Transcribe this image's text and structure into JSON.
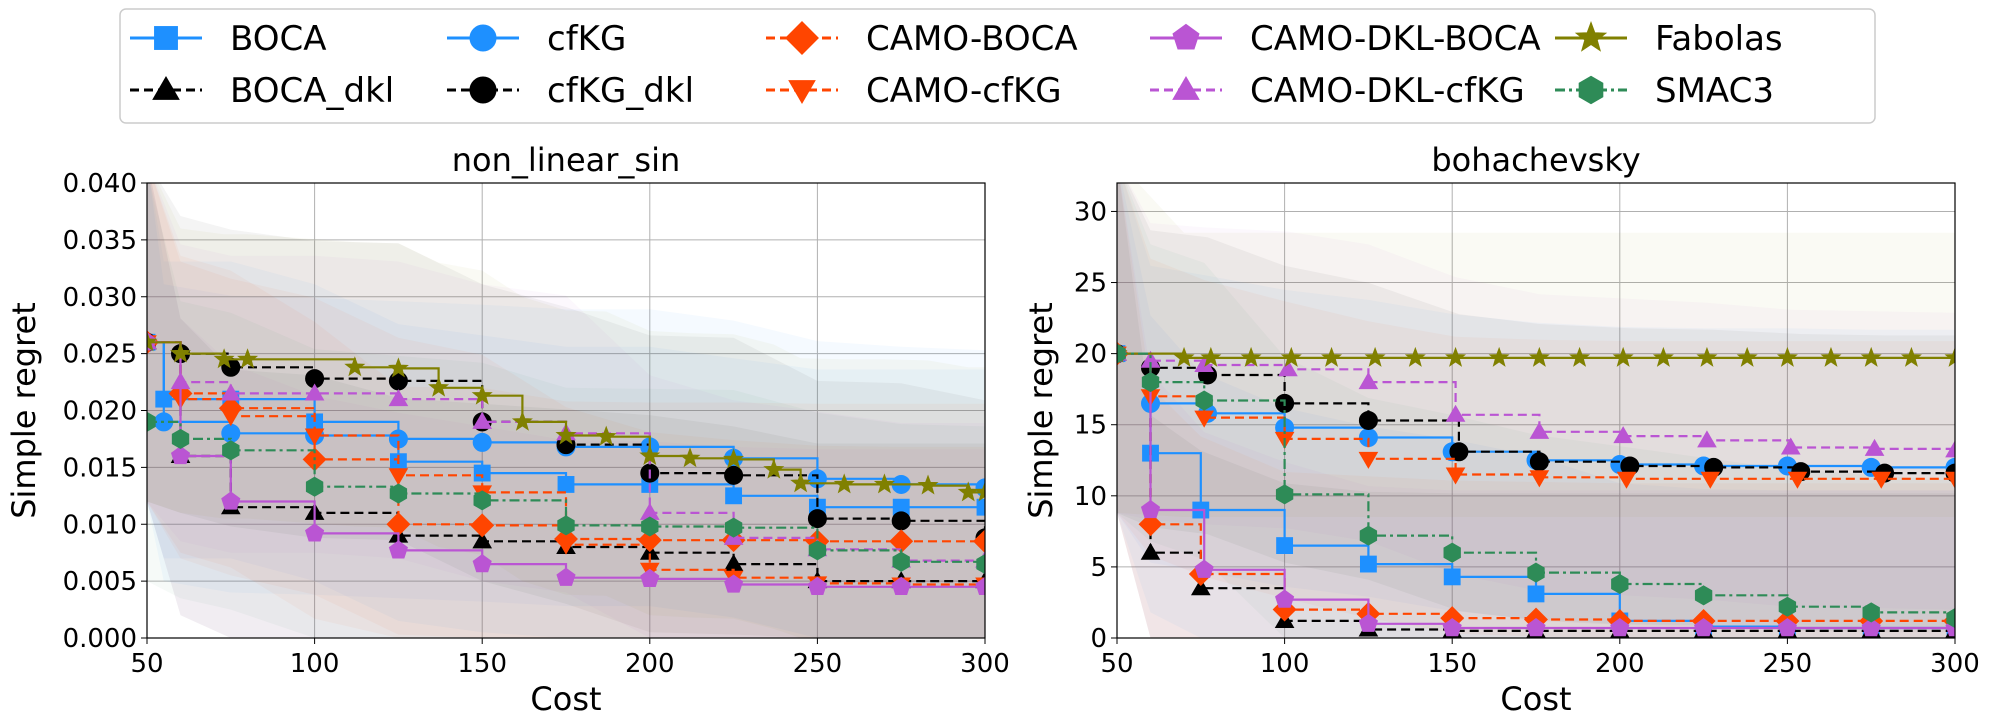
{
  "legend": {
    "entries": [
      {
        "name": "BOCA",
        "color": "#1e90ff",
        "marker": "square",
        "dash": "solid"
      },
      {
        "name": "BOCA_dkl",
        "color": "#000000",
        "marker": "triangle-up",
        "dash": "dashed"
      },
      {
        "name": "cfKG",
        "color": "#1e90ff",
        "marker": "circle",
        "dash": "solid"
      },
      {
        "name": "cfKG_dkl",
        "color": "#000000",
        "marker": "circle",
        "dash": "dashed"
      },
      {
        "name": "CAMO-BOCA",
        "color": "#ff4500",
        "marker": "diamond",
        "dash": "dashed"
      },
      {
        "name": "CAMO-cfKG",
        "color": "#ff4500",
        "marker": "triangle-down",
        "dash": "dashed"
      },
      {
        "name": "CAMO-DKL-BOCA",
        "color": "#ba55d3",
        "marker": "pentagon",
        "dash": "solid"
      },
      {
        "name": "CAMO-DKL-cfKG",
        "color": "#ba55d3",
        "marker": "triangle-up",
        "dash": "dashed"
      },
      {
        "name": "Fabolas",
        "color": "#808000",
        "marker": "star",
        "dash": "solid"
      },
      {
        "name": "SMAC3",
        "color": "#2e8b57",
        "marker": "hexagon",
        "dash": "dashdot"
      }
    ]
  },
  "chart_data": [
    {
      "type": "line",
      "title": "non_linear_sin",
      "xlabel": "Cost",
      "ylabel": "Simple regret",
      "xlim": [
        50,
        300
      ],
      "ylim": [
        0,
        0.04
      ],
      "xticks": [
        50,
        100,
        150,
        200,
        250,
        300
      ],
      "xtick_labels": [
        "50",
        "100",
        "150",
        "200",
        "250",
        "300"
      ],
      "yticks": [
        0,
        0.005,
        0.01,
        0.015,
        0.02,
        0.025,
        0.03,
        0.035,
        0.04
      ],
      "ytick_labels": [
        "0.000",
        "0.005",
        "0.010",
        "0.015",
        "0.020",
        "0.025",
        "0.030",
        "0.035",
        "0.040"
      ],
      "grid": true,
      "series": [
        {
          "name": "BOCA",
          "x": [
            50,
            55,
            75,
            100,
            125,
            150,
            175,
            200,
            225,
            250,
            275,
            300
          ],
          "y": [
            0.026,
            0.021,
            0.021,
            0.019,
            0.0155,
            0.0145,
            0.0135,
            0.0135,
            0.0125,
            0.0115,
            0.0115,
            0.0115
          ]
        },
        {
          "name": "BOCA_dkl",
          "x": [
            50,
            60,
            75,
            100,
            125,
            150,
            175,
            200,
            225,
            250,
            275,
            300
          ],
          "y": [
            0.026,
            0.016,
            0.0115,
            0.011,
            0.009,
            0.0085,
            0.008,
            0.0075,
            0.0065,
            0.005,
            0.005,
            0.005
          ]
        },
        {
          "name": "cfKG",
          "x": [
            50,
            55,
            75,
            100,
            125,
            150,
            175,
            200,
            225,
            250,
            275,
            300
          ],
          "y": [
            0.026,
            0.019,
            0.018,
            0.0178,
            0.0175,
            0.0172,
            0.0168,
            0.0168,
            0.0158,
            0.014,
            0.0135,
            0.0132
          ]
        },
        {
          "name": "cfKG_dkl",
          "x": [
            50,
            60,
            75,
            100,
            125,
            150,
            175,
            200,
            225,
            250,
            275,
            300
          ],
          "y": [
            0.026,
            0.025,
            0.0238,
            0.0228,
            0.0226,
            0.019,
            0.017,
            0.0145,
            0.0143,
            0.0105,
            0.0103,
            0.0088
          ]
        },
        {
          "name": "CAMO-BOCA",
          "x": [
            50,
            60,
            75,
            100,
            125,
            150,
            175,
            200,
            225,
            250,
            275,
            300
          ],
          "y": [
            0.026,
            0.0215,
            0.0202,
            0.0157,
            0.01,
            0.0099,
            0.0087,
            0.0086,
            0.0086,
            0.0085,
            0.0085,
            0.0085
          ]
        },
        {
          "name": "CAMO-cfKG",
          "x": [
            50,
            60,
            75,
            100,
            125,
            150,
            175,
            200,
            225,
            250,
            275,
            300
          ],
          "y": [
            0.026,
            0.021,
            0.0195,
            0.0178,
            0.0143,
            0.0128,
            0.0082,
            0.006,
            0.0053,
            0.0048,
            0.0047,
            0.0047
          ]
        },
        {
          "name": "CAMO-DKL-BOCA",
          "x": [
            50,
            60,
            75,
            100,
            125,
            150,
            175,
            200,
            225,
            250,
            275,
            300
          ],
          "y": [
            0.026,
            0.016,
            0.012,
            0.0092,
            0.0077,
            0.0065,
            0.0053,
            0.0052,
            0.0047,
            0.0045,
            0.0045,
            0.0045
          ]
        },
        {
          "name": "CAMO-DKL-cfKG",
          "x": [
            50,
            60,
            75,
            100,
            125,
            150,
            175,
            200,
            225,
            250,
            275,
            300
          ],
          "y": [
            0.026,
            0.0225,
            0.0215,
            0.0215,
            0.021,
            0.019,
            0.018,
            0.011,
            0.0088,
            0.0078,
            0.0068,
            0.0068
          ]
        },
        {
          "name": "Fabolas",
          "x": [
            50,
            60,
            73,
            80,
            112,
            125,
            137,
            150,
            162,
            175,
            187,
            200,
            212,
            225,
            237,
            245,
            258,
            270,
            283,
            295,
            300
          ],
          "y": [
            0.026,
            0.025,
            0.0245,
            0.0245,
            0.0238,
            0.0237,
            0.022,
            0.0213,
            0.019,
            0.0178,
            0.0177,
            0.016,
            0.0158,
            0.0157,
            0.0148,
            0.0136,
            0.0135,
            0.0135,
            0.0134,
            0.0128,
            0.0128
          ]
        },
        {
          "name": "SMAC3",
          "x": [
            50,
            60,
            75,
            100,
            125,
            150,
            175,
            200,
            225,
            250,
            275,
            300
          ],
          "y": [
            0.019,
            0.0175,
            0.0165,
            0.0133,
            0.0127,
            0.0121,
            0.0099,
            0.0098,
            0.0097,
            0.0077,
            0.0067,
            0.0065
          ]
        }
      ]
    },
    {
      "type": "line",
      "title": "bohachevsky",
      "xlabel": "Cost",
      "ylabel": "Simple regret",
      "xlim": [
        50,
        300
      ],
      "ylim": [
        0,
        32
      ],
      "xticks": [
        50,
        100,
        150,
        200,
        250,
        300
      ],
      "xtick_labels": [
        "50",
        "100",
        "150",
        "200",
        "250",
        "300"
      ],
      "yticks": [
        0,
        5,
        10,
        15,
        20,
        25,
        30
      ],
      "ytick_labels": [
        "0",
        "5",
        "10",
        "15",
        "20",
        "25",
        "30"
      ],
      "grid": true,
      "series": [
        {
          "name": "BOCA",
          "x": [
            50,
            60,
            75,
            100,
            125,
            150,
            175,
            200,
            225,
            250,
            275,
            300
          ],
          "y": [
            20,
            13,
            9,
            6.5,
            5.2,
            4.3,
            3.1,
            1.2,
            0.8,
            0.7,
            0.7,
            0.7
          ]
        },
        {
          "name": "BOCA_dkl",
          "x": [
            50,
            60,
            75,
            100,
            125,
            150,
            175,
            200,
            225,
            250,
            275,
            300
          ],
          "y": [
            20,
            6,
            3.5,
            1.2,
            0.6,
            0.5,
            0.5,
            0.5,
            0.5,
            0.5,
            0.5,
            0.5
          ]
        },
        {
          "name": "cfKG",
          "x": [
            50,
            60,
            77,
            100,
            125,
            150,
            175,
            200,
            225,
            250,
            275,
            300
          ],
          "y": [
            20,
            16.5,
            15.8,
            14.8,
            14.1,
            13.1,
            12.5,
            12.2,
            12.1,
            12.1,
            12,
            12
          ]
        },
        {
          "name": "cfKG_dkl",
          "x": [
            50,
            60,
            77,
            100,
            125,
            152,
            176,
            203,
            228,
            254,
            279,
            300
          ],
          "y": [
            20,
            19,
            18.5,
            16.5,
            15.3,
            13.1,
            12.4,
            12.1,
            12,
            11.7,
            11.6,
            11.6
          ]
        },
        {
          "name": "CAMO-BOCA",
          "x": [
            50,
            60,
            75,
            100,
            125,
            150,
            175,
            200,
            225,
            250,
            275,
            300
          ],
          "y": [
            20,
            8,
            4.5,
            2,
            1.7,
            1.4,
            1.3,
            1.2,
            1.2,
            1.2,
            1.2,
            1.2
          ]
        },
        {
          "name": "CAMO-cfKG",
          "x": [
            50,
            60,
            76,
            100,
            125,
            151,
            176,
            202,
            227,
            253,
            278,
            300
          ],
          "y": [
            20,
            17,
            15.5,
            14,
            12.6,
            11.5,
            11.3,
            11.2,
            11.2,
            11.2,
            11.2,
            11.2
          ]
        },
        {
          "name": "CAMO-DKL-BOCA",
          "x": [
            50,
            60,
            76,
            100,
            125,
            150,
            175,
            200,
            225,
            250,
            275,
            300
          ],
          "y": [
            20,
            9,
            4.8,
            2.7,
            1,
            0.7,
            0.7,
            0.7,
            0.7,
            0.7,
            0.7,
            0.7
          ]
        },
        {
          "name": "CAMO-DKL-cfKG",
          "x": [
            50,
            60,
            76,
            101,
            125,
            151,
            176,
            201,
            226,
            251,
            276,
            300
          ],
          "y": [
            20,
            19.5,
            19.2,
            18.9,
            18,
            15.7,
            14.5,
            14.2,
            13.9,
            13.4,
            13.3,
            13.2
          ]
        },
        {
          "name": "Fabolas",
          "x": [
            50,
            70,
            78,
            90,
            102,
            114,
            127,
            139,
            151,
            164,
            176,
            188,
            201,
            213,
            226,
            238,
            250,
            263,
            275,
            287,
            300
          ],
          "y": [
            20,
            19.7,
            19.7,
            19.7,
            19.7,
            19.7,
            19.7,
            19.7,
            19.7,
            19.7,
            19.7,
            19.7,
            19.7,
            19.7,
            19.7,
            19.7,
            19.7,
            19.7,
            19.7,
            19.7,
            19.7
          ]
        },
        {
          "name": "SMAC3",
          "x": [
            50,
            60,
            76,
            100,
            125,
            150,
            175,
            200,
            225,
            250,
            275,
            300
          ],
          "y": [
            20,
            18,
            16.7,
            10.1,
            7.2,
            6,
            4.6,
            3.8,
            3,
            2.2,
            1.8,
            1.4
          ]
        }
      ]
    }
  ]
}
